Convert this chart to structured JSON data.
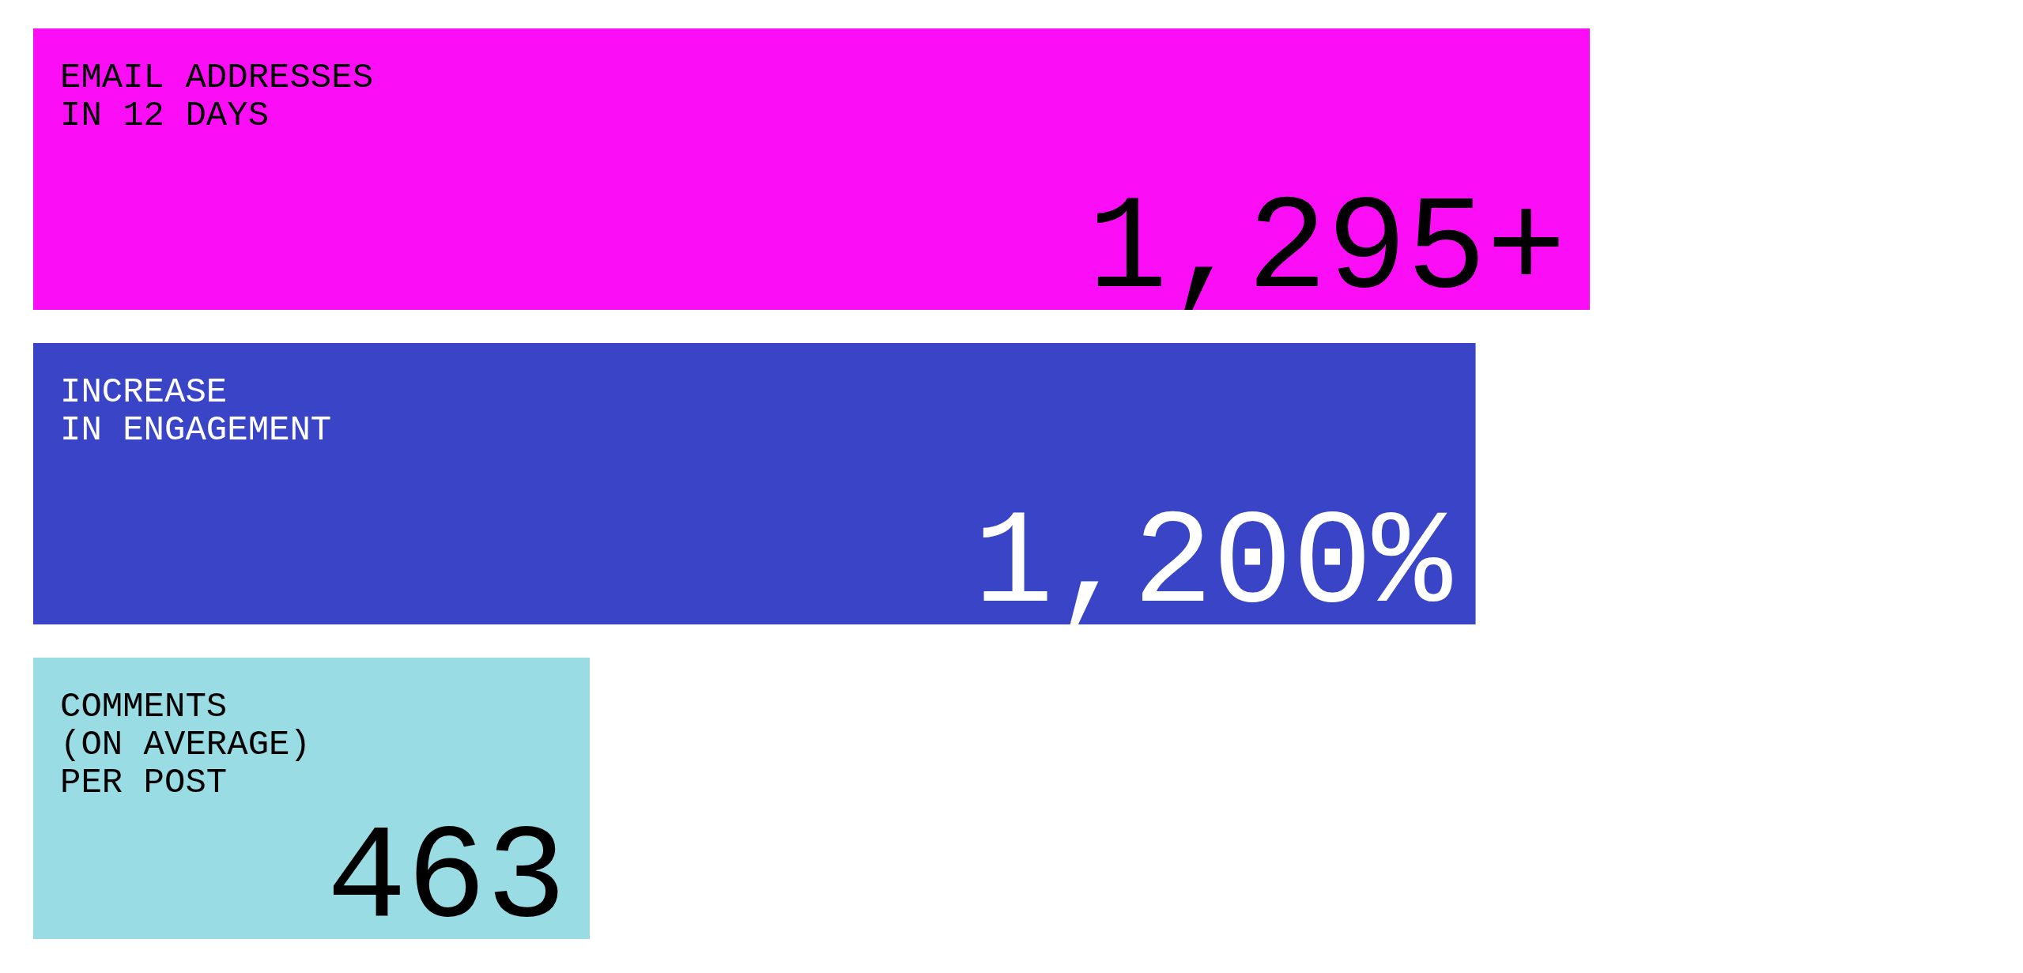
{
  "chart_data": {
    "type": "bar",
    "orientation": "horizontal",
    "categories": [
      "EMAIL ADDRESSES\nIN 12 DAYS",
      "INCREASE\nIN ENGAGEMENT",
      "COMMENTS\n(ON AVERAGE)\nPER POST"
    ],
    "values": [
      1295,
      1200,
      463
    ],
    "colors": [
      "#fb0ef5",
      "#3a44c6",
      "#99dce3"
    ],
    "value_labels": [
      "1,295+",
      "1,200%",
      "463"
    ],
    "grid": false,
    "legend": false
  }
}
